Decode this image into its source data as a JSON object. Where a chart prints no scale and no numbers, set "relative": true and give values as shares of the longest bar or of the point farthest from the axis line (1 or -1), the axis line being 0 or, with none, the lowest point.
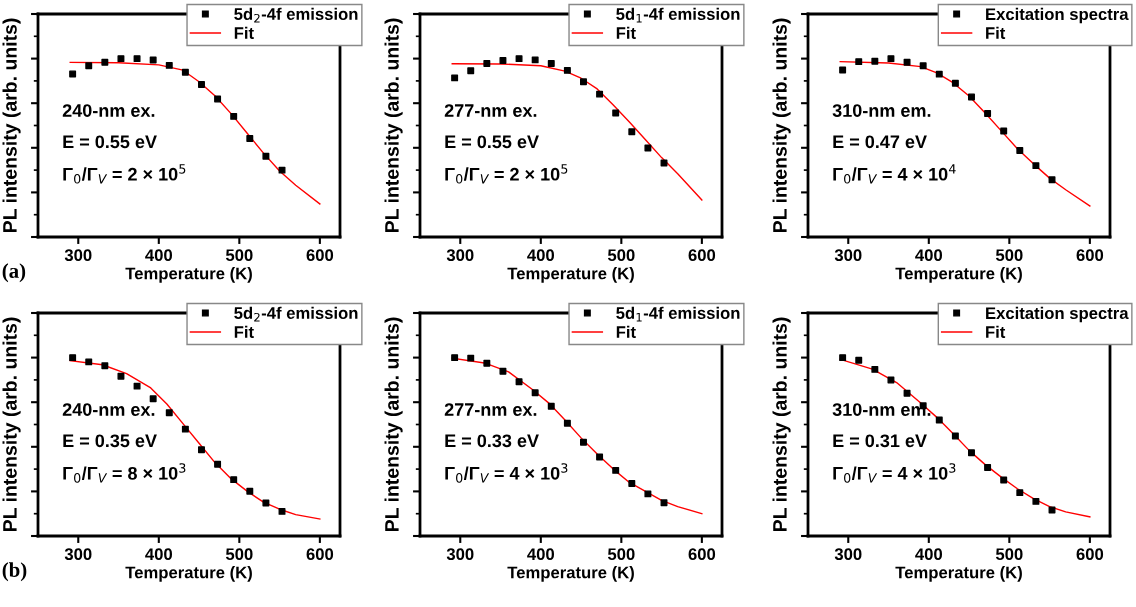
{
  "chart_data": [
    {
      "type": "scatter",
      "xlabel": "Temperature (K)",
      "ylabel": "PL intensity (arb. units)",
      "relative": true,
      "xlim": [
        250,
        625
      ],
      "xticks": [
        300,
        400,
        500,
        600
      ],
      "legend": "top right",
      "grid": false,
      "annotations": [
        "240-nm ex.",
        "E = 0.55 eV",
        "Γ$_{0}$/Γ$_{V}$ = 2 × 10$^{5}$",
        "(a)"
      ],
      "series": [
        {
          "name": "5d$_{2}$-4f emission",
          "marker": "square",
          "color": "#000000",
          "x": [
            293,
            313,
            333,
            353,
            373,
            393,
            413,
            433,
            453,
            473,
            493,
            513,
            533,
            553
          ],
          "values": [
            0.914,
            0.96,
            0.979,
            1,
            1,
            0.992,
            0.962,
            0.924,
            0.855,
            0.773,
            0.676,
            0.552,
            0.453,
            0.375
          ]
        },
        {
          "name": "Fit",
          "type": "line",
          "marker": "none",
          "color": "#ff0000",
          "x": [
            290,
            350,
            400,
            430,
            450,
            470,
            490,
            510,
            530,
            550,
            570,
            600
          ],
          "values": [
            0.979,
            0.977,
            0.965,
            0.935,
            0.87,
            0.79,
            0.69,
            0.58,
            0.47,
            0.37,
            0.29,
            0.185
          ]
        }
      ]
    },
    {
      "type": "scatter",
      "xlabel": "Temperature (K)",
      "ylabel": "PL intensity (arb. units)",
      "relative": true,
      "xlim": [
        250,
        625
      ],
      "xticks": [
        300,
        400,
        500,
        600
      ],
      "legend": "top right",
      "grid": false,
      "annotations": [
        "277-nm ex.",
        "E = 0.55 eV",
        "Γ$_{0}$/Γ$_{V}$ = 2 × 10$^{5}$"
      ],
      "series": [
        {
          "name": "5d$_{1}$-4f emission",
          "marker": "square",
          "color": "#000000",
          "x": [
            293,
            313,
            333,
            353,
            373,
            393,
            413,
            433,
            453,
            473,
            493,
            513,
            533,
            553
          ],
          "values": [
            0.892,
            0.932,
            0.973,
            0.989,
            1,
            0.993,
            0.973,
            0.934,
            0.87,
            0.801,
            0.695,
            0.59,
            0.499,
            0.415
          ]
        },
        {
          "name": "Fit",
          "type": "line",
          "marker": "none",
          "color": "#ff0000",
          "x": [
            290,
            350,
            400,
            430,
            450,
            470,
            490,
            510,
            530,
            550,
            570,
            600
          ],
          "values": [
            0.971,
            0.97,
            0.96,
            0.93,
            0.89,
            0.83,
            0.74,
            0.645,
            0.545,
            0.445,
            0.355,
            0.207
          ]
        }
      ]
    },
    {
      "type": "scatter",
      "xlabel": "Temperature (K)",
      "ylabel": "PL intensity (arb. units)",
      "relative": true,
      "xlim": [
        250,
        625
      ],
      "xticks": [
        300,
        400,
        500,
        600
      ],
      "legend": "top right",
      "grid": false,
      "annotations": [
        "310-nm em.",
        "E = 0.47 eV",
        "Γ$_{0}$/Γ$_{V}$ = 4 × 10$^{4}$"
      ],
      "series": [
        {
          "name": "Excitation spectra",
          "marker": "square",
          "color": "#000000",
          "x": [
            293,
            313,
            333,
            353,
            373,
            393,
            413,
            433,
            453,
            473,
            493,
            513,
            533,
            553
          ],
          "values": [
            0.936,
            0.983,
            0.985,
            1,
            0.979,
            0.96,
            0.913,
            0.862,
            0.785,
            0.692,
            0.594,
            0.485,
            0.4,
            0.321
          ]
        },
        {
          "name": "Fit",
          "type": "line",
          "marker": "none",
          "color": "#ff0000",
          "x": [
            290,
            350,
            390,
            410,
            430,
            450,
            470,
            490,
            510,
            530,
            550,
            570,
            600
          ],
          "values": [
            0.983,
            0.975,
            0.955,
            0.92,
            0.865,
            0.79,
            0.695,
            0.595,
            0.495,
            0.41,
            0.33,
            0.265,
            0.174
          ]
        }
      ]
    },
    {
      "type": "scatter",
      "xlabel": "Temperature (K)",
      "ylabel": "PL intensity (arb. units)",
      "relative": true,
      "xlim": [
        250,
        625
      ],
      "xticks": [
        300,
        400,
        500,
        600
      ],
      "legend": "top right",
      "grid": false,
      "annotations": [
        "240-nm ex.",
        "E = 0.35 eV",
        "Γ$_{0}$/Γ$_{V}$ = 8 × 10$^{3}$",
        "(b)"
      ],
      "series": [
        {
          "name": "5d$_{2}$-4f emission",
          "marker": "square",
          "color": "#000000",
          "x": [
            293,
            313,
            333,
            353,
            373,
            393,
            413,
            433,
            453,
            473,
            493,
            513,
            533,
            553
          ],
          "values": [
            1,
            0.976,
            0.954,
            0.896,
            0.84,
            0.769,
            0.691,
            0.599,
            0.484,
            0.402,
            0.316,
            0.251,
            0.185,
            0.138
          ]
        },
        {
          "name": "Fit",
          "type": "line",
          "marker": "none",
          "color": "#ff0000",
          "x": [
            290,
            330,
            360,
            390,
            410,
            430,
            450,
            470,
            490,
            510,
            530,
            550,
            570,
            600
          ],
          "values": [
            0.983,
            0.96,
            0.91,
            0.83,
            0.74,
            0.63,
            0.52,
            0.41,
            0.32,
            0.25,
            0.19,
            0.15,
            0.12,
            0.095
          ]
        }
      ]
    },
    {
      "type": "scatter",
      "xlabel": "Temperature (K)",
      "ylabel": "PL intensity (arb. units)",
      "relative": true,
      "xlim": [
        250,
        625
      ],
      "xticks": [
        300,
        400,
        500,
        600
      ],
      "legend": "top right",
      "grid": false,
      "annotations": [
        "277-nm ex.",
        "E = 0.33 eV",
        "Γ$_{0}$/Γ$_{V}$ = 4 × 10$^{3}$"
      ],
      "series": [
        {
          "name": "5d$_{1}$-4f emission",
          "marker": "square",
          "color": "#000000",
          "x": [
            293,
            313,
            333,
            353,
            373,
            393,
            413,
            433,
            453,
            473,
            493,
            513,
            533,
            553
          ],
          "values": [
            1,
            0.997,
            0.968,
            0.923,
            0.865,
            0.803,
            0.727,
            0.632,
            0.526,
            0.443,
            0.368,
            0.294,
            0.236,
            0.186
          ]
        },
        {
          "name": "Fit",
          "type": "line",
          "marker": "none",
          "color": "#ff0000",
          "x": [
            290,
            330,
            360,
            390,
            410,
            430,
            450,
            470,
            490,
            510,
            530,
            550,
            570,
            600
          ],
          "values": [
            0.997,
            0.97,
            0.92,
            0.82,
            0.745,
            0.65,
            0.55,
            0.46,
            0.375,
            0.3,
            0.25,
            0.2,
            0.165,
            0.125
          ]
        }
      ]
    },
    {
      "type": "scatter",
      "xlabel": "Temperature (K)",
      "ylabel": "PL intensity (arb. units)",
      "relative": true,
      "xlim": [
        250,
        625
      ],
      "xticks": [
        300,
        400,
        500,
        600
      ],
      "legend": "top right",
      "grid": false,
      "annotations": [
        "310-nm em.",
        "E = 0.31 eV",
        "Γ$_{0}$/Γ$_{V}$ = 4 × 10$^{3}$"
      ],
      "series": [
        {
          "name": "Excitation spectra",
          "marker": "square",
          "color": "#000000",
          "x": [
            293,
            313,
            333,
            353,
            373,
            393,
            413,
            433,
            453,
            473,
            493,
            513,
            533,
            553
          ],
          "values": [
            1,
            0.985,
            0.934,
            0.874,
            0.8,
            0.73,
            0.65,
            0.56,
            0.467,
            0.384,
            0.314,
            0.243,
            0.194,
            0.146
          ]
        },
        {
          "name": "Fit",
          "type": "line",
          "marker": "none",
          "color": "#ff0000",
          "x": [
            290,
            330,
            360,
            390,
            410,
            430,
            450,
            470,
            490,
            510,
            530,
            550,
            570,
            600
          ],
          "values": [
            0.99,
            0.935,
            0.86,
            0.745,
            0.665,
            0.575,
            0.48,
            0.4,
            0.33,
            0.265,
            0.21,
            0.165,
            0.135,
            0.107
          ]
        }
      ]
    }
  ]
}
